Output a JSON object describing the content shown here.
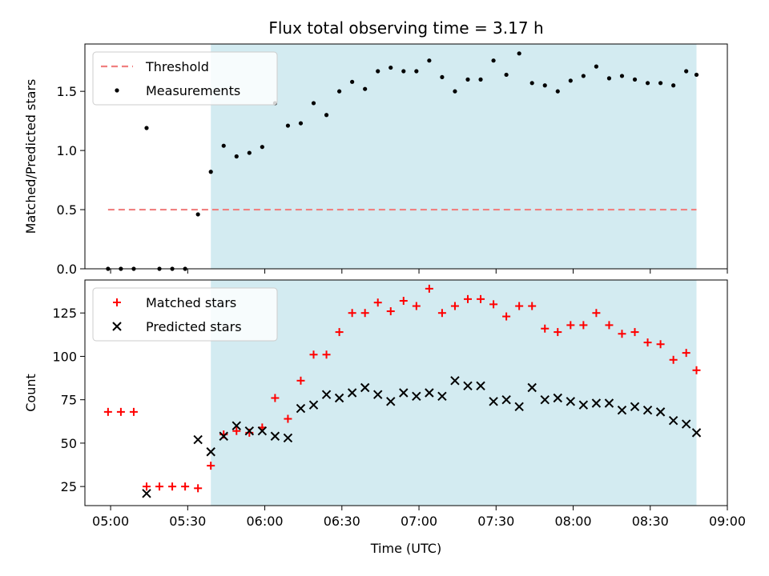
{
  "chart_data": {
    "title": "Flux total observing time = 3.17 h",
    "colors": {
      "observing_window": "#d3ebf1",
      "threshold": "#f08080",
      "measurements": "#000000",
      "matched": "#ff0000",
      "predicted": "#000000"
    },
    "x_axis": {
      "label": "Time (UTC)",
      "range": [
        "04:50",
        "09:00"
      ],
      "ticks": [
        "05:00",
        "05:30",
        "06:00",
        "06:30",
        "07:00",
        "07:30",
        "08:00",
        "08:30",
        "09:00"
      ]
    },
    "observing_window": {
      "start": "05:39",
      "end": "08:48"
    },
    "panels": [
      {
        "type": "scatter",
        "ylabel": "Matched/Predicted stars",
        "ylim": [
          0,
          1.9
        ],
        "yticks": [
          "0.0",
          "0.5",
          "1.0",
          "1.5"
        ],
        "legend": "top-left",
        "threshold": {
          "name": "Threshold",
          "value": 0.5,
          "x_start": "04:59",
          "x_end": "08:48"
        },
        "series": [
          {
            "name": "Measurements",
            "points": [
              [
                "04:59",
                0.0
              ],
              [
                "05:04",
                0.0
              ],
              [
                "05:09",
                0.0
              ],
              [
                "05:14",
                1.19
              ],
              [
                "05:19",
                0.0
              ],
              [
                "05:24",
                0.0
              ],
              [
                "05:29",
                0.0
              ],
              [
                "05:34",
                0.46
              ],
              [
                "05:39",
                0.82
              ],
              [
                "05:44",
                1.04
              ],
              [
                "05:49",
                0.95
              ],
              [
                "05:54",
                0.98
              ],
              [
                "05:59",
                1.03
              ],
              [
                "06:04",
                1.4
              ],
              [
                "06:09",
                1.21
              ],
              [
                "06:14",
                1.23
              ],
              [
                "06:19",
                1.4
              ],
              [
                "06:24",
                1.3
              ],
              [
                "06:29",
                1.5
              ],
              [
                "06:34",
                1.58
              ],
              [
                "06:39",
                1.52
              ],
              [
                "06:44",
                1.67
              ],
              [
                "06:49",
                1.7
              ],
              [
                "06:54",
                1.67
              ],
              [
                "06:59",
                1.67
              ],
              [
                "07:04",
                1.76
              ],
              [
                "07:09",
                1.62
              ],
              [
                "07:14",
                1.5
              ],
              [
                "07:19",
                1.6
              ],
              [
                "07:24",
                1.6
              ],
              [
                "07:29",
                1.76
              ],
              [
                "07:34",
                1.64
              ],
              [
                "07:39",
                1.82
              ],
              [
                "07:44",
                1.57
              ],
              [
                "07:49",
                1.55
              ],
              [
                "07:54",
                1.5
              ],
              [
                "07:59",
                1.59
              ],
              [
                "08:04",
                1.63
              ],
              [
                "08:09",
                1.71
              ],
              [
                "08:14",
                1.61
              ],
              [
                "08:19",
                1.63
              ],
              [
                "08:24",
                1.6
              ],
              [
                "08:29",
                1.57
              ],
              [
                "08:34",
                1.57
              ],
              [
                "08:39",
                1.55
              ],
              [
                "08:44",
                1.67
              ],
              [
                "08:48",
                1.64
              ]
            ]
          }
        ]
      },
      {
        "type": "scatter",
        "ylabel": "Count",
        "ylim": [
          14,
          144
        ],
        "yticks": [
          "25",
          "50",
          "75",
          "100",
          "125"
        ],
        "legend": "top-left",
        "series": [
          {
            "name": "Matched stars",
            "marker": "plus",
            "points": [
              [
                "04:59",
                68
              ],
              [
                "05:04",
                68
              ],
              [
                "05:09",
                68
              ],
              [
                "05:14",
                25
              ],
              [
                "05:19",
                25
              ],
              [
                "05:24",
                25
              ],
              [
                "05:29",
                25
              ],
              [
                "05:34",
                24
              ],
              [
                "05:39",
                37
              ],
              [
                "05:44",
                55
              ],
              [
                "05:49",
                57
              ],
              [
                "05:54",
                56
              ],
              [
                "05:59",
                59
              ],
              [
                "06:04",
                76
              ],
              [
                "06:09",
                64
              ],
              [
                "06:14",
                86
              ],
              [
                "06:19",
                101
              ],
              [
                "06:24",
                101
              ],
              [
                "06:29",
                114
              ],
              [
                "06:34",
                125
              ],
              [
                "06:39",
                125
              ],
              [
                "06:44",
                131
              ],
              [
                "06:49",
                126
              ],
              [
                "06:54",
                132
              ],
              [
                "06:59",
                129
              ],
              [
                "07:04",
                139
              ],
              [
                "07:09",
                125
              ],
              [
                "07:14",
                129
              ],
              [
                "07:19",
                133
              ],
              [
                "07:24",
                133
              ],
              [
                "07:29",
                130
              ],
              [
                "07:34",
                123
              ],
              [
                "07:39",
                129
              ],
              [
                "07:44",
                129
              ],
              [
                "07:49",
                116
              ],
              [
                "07:54",
                114
              ],
              [
                "07:59",
                118
              ],
              [
                "08:04",
                118
              ],
              [
                "08:09",
                125
              ],
              [
                "08:14",
                118
              ],
              [
                "08:19",
                113
              ],
              [
                "08:24",
                114
              ],
              [
                "08:29",
                108
              ],
              [
                "08:34",
                107
              ],
              [
                "08:39",
                98
              ],
              [
                "08:44",
                102
              ],
              [
                "08:48",
                92
              ]
            ]
          },
          {
            "name": "Predicted stars",
            "marker": "x",
            "points": [
              [
                "05:14",
                21
              ],
              [
                "05:34",
                52
              ],
              [
                "05:39",
                45
              ],
              [
                "05:44",
                54
              ],
              [
                "05:49",
                60
              ],
              [
                "05:54",
                57
              ],
              [
                "05:59",
                57
              ],
              [
                "06:04",
                54
              ],
              [
                "06:09",
                53
              ],
              [
                "06:14",
                70
              ],
              [
                "06:19",
                72
              ],
              [
                "06:24",
                78
              ],
              [
                "06:29",
                76
              ],
              [
                "06:34",
                79
              ],
              [
                "06:39",
                82
              ],
              [
                "06:44",
                78
              ],
              [
                "06:49",
                74
              ],
              [
                "06:54",
                79
              ],
              [
                "06:59",
                77
              ],
              [
                "07:04",
                79
              ],
              [
                "07:09",
                77
              ],
              [
                "07:14",
                86
              ],
              [
                "07:19",
                83
              ],
              [
                "07:24",
                83
              ],
              [
                "07:29",
                74
              ],
              [
                "07:34",
                75
              ],
              [
                "07:39",
                71
              ],
              [
                "07:44",
                82
              ],
              [
                "07:49",
                75
              ],
              [
                "07:54",
                76
              ],
              [
                "07:59",
                74
              ],
              [
                "08:04",
                72
              ],
              [
                "08:09",
                73
              ],
              [
                "08:14",
                73
              ],
              [
                "08:19",
                69
              ],
              [
                "08:24",
                71
              ],
              [
                "08:29",
                69
              ],
              [
                "08:34",
                68
              ],
              [
                "08:39",
                63
              ],
              [
                "08:44",
                61
              ],
              [
                "08:48",
                56
              ]
            ]
          }
        ]
      }
    ]
  }
}
